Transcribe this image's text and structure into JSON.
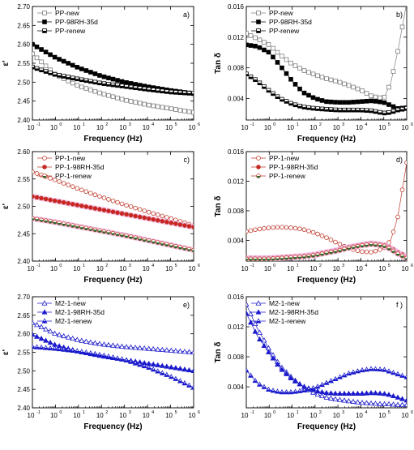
{
  "colors": {
    "black": "#000000",
    "gray": "#7f7f7f",
    "red": "#c0392b",
    "red_fill": "#cc2222",
    "blue": "#1a1acc",
    "halo": "#f3b8e6"
  },
  "chart_data": [
    {
      "panel": "a)",
      "type": "line",
      "xscale": "log",
      "xlim": [
        0.1,
        1000000
      ],
      "ylim": [
        2.4,
        2.7
      ],
      "xlabel": "Frequency  (Hz)",
      "ylabel": "ε'",
      "legend": "top-left",
      "xticks": [
        "10",
        "10",
        "10",
        "10",
        "10",
        "10",
        "10",
        "10"
      ],
      "xtick_exps": [
        "-1",
        "0",
        "1",
        "2",
        "3",
        "4",
        "5",
        "6"
      ],
      "yticks": [
        "2.40",
        "2.45",
        "2.50",
        "2.55",
        "2.60",
        "2.65",
        "2.70"
      ],
      "x": [
        0.1,
        1,
        10,
        100,
        1000,
        10000,
        100000,
        1000000
      ],
      "series": [
        {
          "name": "PP-new",
          "marker": "open-square",
          "color": "gray",
          "values": [
            2.575,
            2.52,
            2.49,
            2.47,
            2.453,
            2.44,
            2.43,
            2.42
          ]
        },
        {
          "name": "PP-98RH-35d",
          "marker": "filled-square",
          "color": "black",
          "values": [
            2.6,
            2.565,
            2.538,
            2.516,
            2.5,
            2.488,
            2.478,
            2.47
          ]
        },
        {
          "name": "PP-renew",
          "marker": "half-square",
          "color": "black",
          "values": [
            2.54,
            2.52,
            2.508,
            2.497,
            2.489,
            2.481,
            2.474,
            2.47
          ]
        }
      ]
    },
    {
      "panel": "b)",
      "type": "line",
      "xscale": "log",
      "xlim": [
        0.1,
        1000000
      ],
      "ylim": [
        0.0012,
        0.016
      ],
      "xlabel": "Frequency  (Hz)",
      "ylabel": "Tan δ",
      "legend": "top-left",
      "xticks": [
        "10",
        "10",
        "10",
        "10",
        "10",
        "10",
        "10",
        "10"
      ],
      "xtick_exps": [
        "-1",
        "0",
        "1",
        "2",
        "3",
        "4",
        "5",
        "6"
      ],
      "yticks": [
        "0.004",
        "0.008",
        "0.012",
        "0.016"
      ],
      "x": [
        0.1,
        0.3,
        1,
        3,
        10,
        30,
        100,
        300,
        1000,
        3000,
        10000,
        30000,
        100000,
        200000,
        400000,
        1000000
      ],
      "series": [
        {
          "name": "PP-new",
          "marker": "open-square",
          "color": "gray",
          "values": [
            0.0125,
            0.0118,
            0.011,
            0.0097,
            0.0085,
            0.0077,
            0.0071,
            0.0066,
            0.0062,
            0.0057,
            0.0051,
            0.0043,
            0.004,
            0.006,
            0.01,
            0.0165
          ]
        },
        {
          "name": "PP-98RH-35d",
          "marker": "filled-square",
          "color": "black",
          "values": [
            0.011,
            0.0108,
            0.01,
            0.0083,
            0.0063,
            0.0048,
            0.004,
            0.0036,
            0.0035,
            0.0035,
            0.0036,
            0.0037,
            0.0035,
            0.0031,
            0.0027,
            0.0028
          ]
        },
        {
          "name": "PP-renew",
          "marker": "half-square",
          "color": "black",
          "values": [
            0.0072,
            0.0063,
            0.005,
            0.004,
            0.0033,
            0.0029,
            0.0027,
            0.0026,
            0.0025,
            0.0025,
            0.0025,
            0.0024,
            0.0021,
            0.0022,
            0.0025,
            0.0027
          ]
        }
      ]
    },
    {
      "panel": "c)",
      "type": "line",
      "xscale": "log",
      "xlim": [
        0.1,
        1000000
      ],
      "ylim": [
        2.4,
        2.6
      ],
      "xlabel": "Frequency  (Hz)",
      "ylabel": "ε'",
      "legend": "top-left",
      "xticks": [
        "10",
        "10",
        "10",
        "10",
        "10",
        "10",
        "10",
        "10"
      ],
      "xtick_exps": [
        "-1",
        "0",
        "1",
        "2",
        "3",
        "4",
        "5",
        "6"
      ],
      "yticks": [
        "2.40",
        "2.45",
        "2.50",
        "2.55",
        "2.60"
      ],
      "x": [
        0.1,
        1,
        10,
        100,
        1000,
        10000,
        100000,
        1000000
      ],
      "series": [
        {
          "name": "PP-1-new",
          "marker": "open-circle",
          "color": "red",
          "values": [
            2.563,
            2.548,
            2.532,
            2.517,
            2.503,
            2.49,
            2.478,
            2.465
          ]
        },
        {
          "name": "PP-1-98RH-35d",
          "marker": "filled-circle",
          "color": "red",
          "values": [
            2.518,
            2.51,
            2.502,
            2.494,
            2.486,
            2.478,
            2.47,
            2.462
          ]
        },
        {
          "name": "PP-1-renew",
          "marker": "half-circle",
          "color": "red",
          "values": [
            2.478,
            2.471,
            2.463,
            2.455,
            2.447,
            2.438,
            2.429,
            2.42
          ]
        }
      ]
    },
    {
      "panel": "d)",
      "type": "line",
      "xscale": "log",
      "xlim": [
        0.1,
        1000000
      ],
      "ylim": [
        0.0012,
        0.016
      ],
      "xlabel": "Frequency  (Hz)",
      "ylabel": "Tan δ",
      "legend": "top-left",
      "xticks": [
        "10",
        "10",
        "10",
        "10",
        "10",
        "10",
        "10",
        "10"
      ],
      "xtick_exps": [
        "-1",
        "0",
        "1",
        "2",
        "3",
        "4",
        "5",
        "6"
      ],
      "yticks": [
        "0.004",
        "0.008",
        "0.012",
        "0.016"
      ],
      "x": [
        0.1,
        0.3,
        1,
        3,
        10,
        30,
        100,
        300,
        1000,
        3000,
        10000,
        30000,
        100000,
        200000,
        400000,
        1000000
      ],
      "series": [
        {
          "name": "PP-1-new",
          "marker": "open-circle",
          "color": "red",
          "values": [
            0.0052,
            0.0055,
            0.0057,
            0.0058,
            0.0057,
            0.0055,
            0.005,
            0.0044,
            0.0036,
            0.0029,
            0.0025,
            0.0024,
            0.0029,
            0.004,
            0.007,
            0.0145
          ]
        },
        {
          "name": "PP-1-98RH-35d",
          "marker": "filled-circle",
          "color": "red",
          "values": [
            0.0016,
            0.0016,
            0.0016,
            0.0017,
            0.0018,
            0.0019,
            0.0021,
            0.0024,
            0.0027,
            0.0031,
            0.0034,
            0.0036,
            0.0034,
            0.003,
            0.0024,
            0.0018
          ]
        },
        {
          "name": "PP-1-renew",
          "marker": "half-circle",
          "color": "red",
          "values": [
            0.0015,
            0.0015,
            0.0015,
            0.0016,
            0.0017,
            0.0018,
            0.002,
            0.0023,
            0.0026,
            0.003,
            0.0033,
            0.0035,
            0.0033,
            0.0028,
            0.0022,
            0.0016
          ]
        }
      ]
    },
    {
      "panel": "e)",
      "type": "line",
      "xscale": "log",
      "xlim": [
        0.1,
        1000000
      ],
      "ylim": [
        2.4,
        2.7
      ],
      "xlabel": "Frequency  (Hz)",
      "ylabel": "ε'",
      "legend": "top-left",
      "xticks": [
        "10",
        "10",
        "10",
        "10",
        "10",
        "10",
        "10",
        "10"
      ],
      "xtick_exps": [
        "-1",
        "0",
        "1",
        "2",
        "3",
        "4",
        "5",
        "6"
      ],
      "yticks": [
        "2.40",
        "2.45",
        "2.50",
        "2.55",
        "2.60",
        "2.65",
        "2.70"
      ],
      "x": [
        0.1,
        1,
        10,
        100,
        1000,
        10000,
        100000,
        1000000
      ],
      "series": [
        {
          "name": "M2-1-new",
          "marker": "open-triangle",
          "color": "blue",
          "values": [
            2.63,
            2.6,
            2.583,
            2.572,
            2.565,
            2.56,
            2.555,
            2.55
          ]
        },
        {
          "name": "M2-1-98RH-35d",
          "marker": "filled-triangle",
          "color": "blue",
          "values": [
            2.598,
            2.57,
            2.552,
            2.54,
            2.53,
            2.52,
            2.51,
            2.5
          ]
        },
        {
          "name": "M2-1-renew",
          "marker": "half-triangle",
          "color": "blue",
          "values": [
            2.565,
            2.56,
            2.553,
            2.543,
            2.53,
            2.51,
            2.485,
            2.455
          ]
        }
      ]
    },
    {
      "panel": "f )",
      "type": "line",
      "xscale": "log",
      "xlim": [
        0.1,
        1000000
      ],
      "ylim": [
        0.0012,
        0.016
      ],
      "xlabel": "Frequency  (Hz)",
      "ylabel": "Tan δ",
      "legend": "top-left",
      "xticks": [
        "10",
        "10",
        "10",
        "10",
        "10",
        "10",
        "10",
        "10"
      ],
      "xtick_exps": [
        "-1",
        "0",
        "1",
        "2",
        "3",
        "4",
        "5",
        "6"
      ],
      "yticks": [
        "0.004",
        "0.008",
        "0.012",
        "0.016"
      ],
      "x": [
        0.1,
        0.3,
        1,
        3,
        10,
        30,
        100,
        300,
        1000,
        3000,
        10000,
        30000,
        100000,
        200000,
        400000,
        1000000
      ],
      "series": [
        {
          "name": "M2-1-new",
          "marker": "open-triangle",
          "color": "blue",
          "values": [
            0.015,
            0.0118,
            0.009,
            0.0068,
            0.0052,
            0.004,
            0.0031,
            0.0026,
            0.0023,
            0.0021,
            0.0019,
            0.0018,
            0.0017,
            0.0017,
            0.0016,
            0.0016
          ]
        },
        {
          "name": "M2-1-98RH-35d",
          "marker": "filled-triangle",
          "color": "blue",
          "values": [
            0.0138,
            0.0108,
            0.0085,
            0.0065,
            0.005,
            0.0041,
            0.0035,
            0.0032,
            0.0031,
            0.0031,
            0.0031,
            0.0032,
            0.0031,
            0.0029,
            0.0026,
            0.0022
          ]
        },
        {
          "name": "M2-1-renew",
          "marker": "half-triangle",
          "color": "blue",
          "values": [
            0.0062,
            0.0045,
            0.0036,
            0.0033,
            0.0033,
            0.0035,
            0.0039,
            0.0045,
            0.0052,
            0.0058,
            0.0062,
            0.0064,
            0.0063,
            0.006,
            0.0057,
            0.0053
          ]
        }
      ]
    }
  ]
}
